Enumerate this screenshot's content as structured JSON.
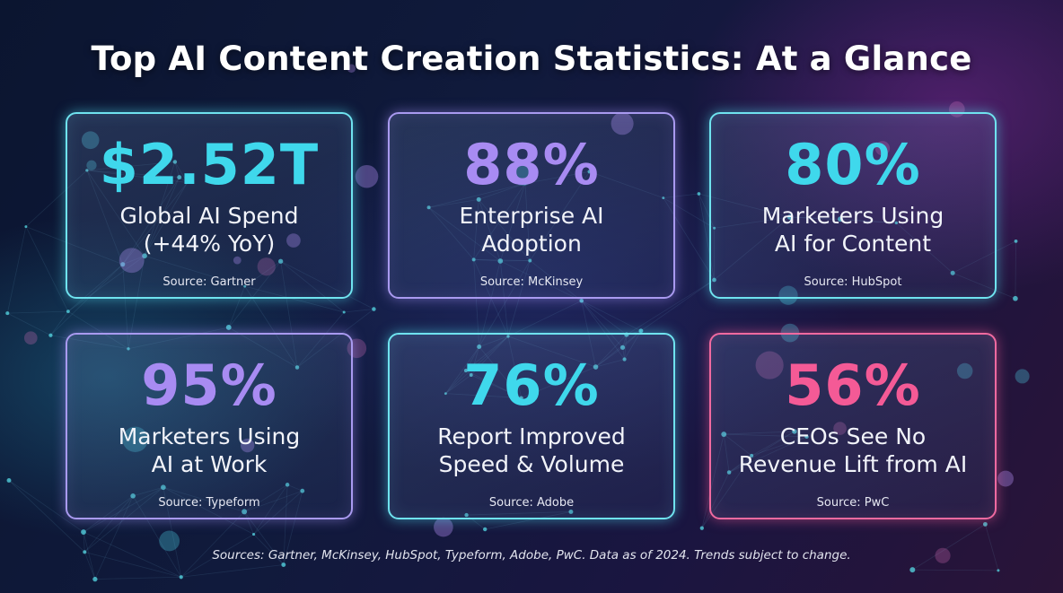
{
  "title": "Top AI Content Creation Statistics: At a Glance",
  "cards": [
    {
      "value": "$2.52T",
      "line1": "Global AI Spend",
      "line2": "(+44% YoY)",
      "source": "Source: Gartner",
      "accent": "#3fd8ec"
    },
    {
      "value": "88%",
      "line1": "Enterprise AI",
      "line2": "Adoption",
      "source": "Source: McKinsey",
      "accent": "#a88bf2"
    },
    {
      "value": "80%",
      "line1": "Marketers Using",
      "line2": "AI for Content",
      "source": "Source: HubSpot",
      "accent": "#3fd8ec"
    },
    {
      "value": "95%",
      "line1": "Marketers Using",
      "line2": "AI at Work",
      "source": "Source: Typeform",
      "accent": "#a88bf2"
    },
    {
      "value": "76%",
      "line1": "Report Improved",
      "line2": "Speed & Volume",
      "source": "Source: Adobe",
      "accent": "#3fd8ec"
    },
    {
      "value": "56%",
      "line1": "CEOs See No",
      "line2": "Revenue Lift from AI",
      "source": "Source: PwC",
      "accent": "#f45a96"
    }
  ],
  "footer": "Sources: Gartner, McKinsey, HubSpot, Typeform, Adobe, PwC. Data as of 2024. Trends subject to change."
}
